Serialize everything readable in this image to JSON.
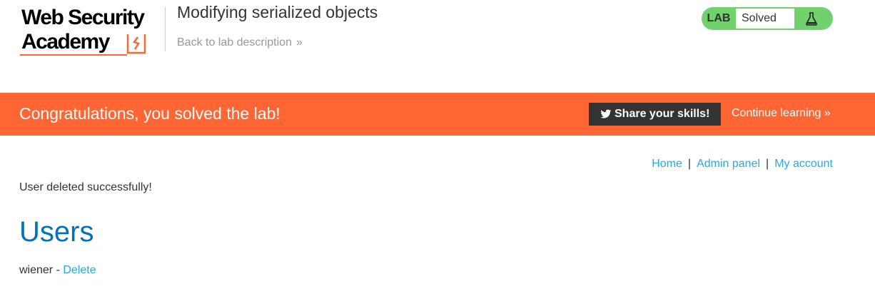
{
  "header": {
    "logo_line1": "Web Security",
    "logo_line2": "Academy",
    "lab_title": "Modifying serialized objects",
    "back_link": "Back to lab description",
    "back_chevron": "»",
    "lab_tag": "LAB",
    "lab_status": "Solved",
    "flask_icon": "flask-icon"
  },
  "banner": {
    "message": "Congratulations, you solved the lab!",
    "share_label": "Share your skills!",
    "continue_label": "Continue learning",
    "continue_chevron": "»"
  },
  "nav": {
    "home": "Home",
    "admin": "Admin panel",
    "account": "My account",
    "separator": "|"
  },
  "main": {
    "message": "User deleted successfully!",
    "heading": "Users",
    "users": [
      {
        "name": "wiener",
        "sep": " - ",
        "action": "Delete"
      }
    ]
  },
  "colors": {
    "accent": "#ff6633",
    "link": "#29a9e0",
    "heading": "#0071bc",
    "lab_badge": "#70d16d"
  }
}
